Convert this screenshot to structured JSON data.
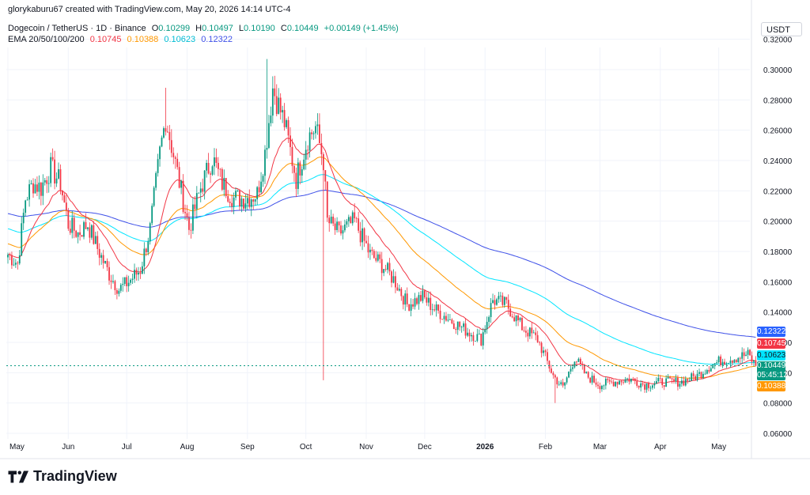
{
  "header": {
    "attribution": "glorykaburu67 created with TradingView.com, May 20, 2026 14:14 UTC-4"
  },
  "legend": {
    "symbol": "Dogecoin / TetherUS · 1D · Binance",
    "open_label": "O",
    "open": "0.10299",
    "high_label": "H",
    "high": "0.10497",
    "low_label": "L",
    "low": "0.10190",
    "close_label": "C",
    "close": "0.10449",
    "change": "+0.00149 (+1.45%)",
    "ema_label": "EMA 20/50/100/200",
    "ema20": "0.10745",
    "ema50": "0.10388",
    "ema100": "0.10623",
    "ema200": "0.12322"
  },
  "currency_button": "USDT",
  "price_tags": {
    "ema200": "0.12322",
    "ema20": "0.10745",
    "ema100": "0.10623",
    "last_price": "0.10449",
    "countdown": "05:45:12",
    "ema50": "0.10388"
  },
  "colors": {
    "up": "#089981",
    "down": "#f23645",
    "ema20": "#f23645",
    "ema50": "#ff9800",
    "ema100": "#00e5ff",
    "ema200": "#3f51e8",
    "ema200_tag": "#2962ff",
    "ema100_tag": "#00e5ff"
  },
  "logo": {
    "text": "TradingView",
    "icon": "tradingview-logo-icon"
  },
  "chart_data": {
    "type": "candlestick",
    "y_axis": {
      "ticks": [
        "0.06000",
        "0.08000",
        "0.10000",
        "0.12000",
        "0.14000",
        "0.16000",
        "0.18000",
        "0.20000",
        "0.22000",
        "0.24000",
        "0.26000",
        "0.28000",
        "0.30000",
        "0.32000"
      ],
      "range": [
        0.055,
        0.325
      ]
    },
    "x_axis": {
      "ticks": [
        "May",
        "Jun",
        "Jul",
        "Aug",
        "Sep",
        "Oct",
        "Nov",
        "Dec",
        "2026",
        "Feb",
        "Mar",
        "Apr",
        "May"
      ],
      "range_start": "2025-05-01",
      "range_end": "2026-05-20"
    },
    "last_close": 0.10449,
    "anchors": [
      [
        "2025-05-01",
        0.178
      ],
      [
        "2025-05-06",
        0.172
      ],
      [
        "2025-05-10",
        0.215
      ],
      [
        "2025-05-14",
        0.225
      ],
      [
        "2025-05-18",
        0.222
      ],
      [
        "2025-05-23",
        0.235
      ],
      [
        "2025-05-28",
        0.225
      ],
      [
        "2025-06-01",
        0.198
      ],
      [
        "2025-06-06",
        0.192
      ],
      [
        "2025-06-11",
        0.198
      ],
      [
        "2025-06-16",
        0.182
      ],
      [
        "2025-06-22",
        0.165
      ],
      [
        "2025-06-27",
        0.155
      ],
      [
        "2025-07-02",
        0.16
      ],
      [
        "2025-07-08",
        0.168
      ],
      [
        "2025-07-13",
        0.195
      ],
      [
        "2025-07-18",
        0.245
      ],
      [
        "2025-07-21",
        0.268
      ],
      [
        "2025-07-26",
        0.238
      ],
      [
        "2025-08-02",
        0.195
      ],
      [
        "2025-08-08",
        0.222
      ],
      [
        "2025-08-14",
        0.242
      ],
      [
        "2025-08-19",
        0.225
      ],
      [
        "2025-08-25",
        0.215
      ],
      [
        "2025-08-31",
        0.215
      ],
      [
        "2025-09-06",
        0.218
      ],
      [
        "2025-09-10",
        0.245
      ],
      [
        "2025-09-14",
        0.288
      ],
      [
        "2025-09-20",
        0.265
      ],
      [
        "2025-09-26",
        0.228
      ],
      [
        "2025-10-02",
        0.255
      ],
      [
        "2025-10-06",
        0.262
      ],
      [
        "2025-10-10",
        0.24
      ],
      [
        "2025-10-12",
        0.2
      ],
      [
        "2025-10-18",
        0.192
      ],
      [
        "2025-10-26",
        0.2
      ],
      [
        "2025-11-03",
        0.178
      ],
      [
        "2025-11-10",
        0.17
      ],
      [
        "2025-11-16",
        0.16
      ],
      [
        "2025-11-22",
        0.145
      ],
      [
        "2025-11-30",
        0.15
      ],
      [
        "2025-12-06",
        0.142
      ],
      [
        "2025-12-14",
        0.135
      ],
      [
        "2025-12-22",
        0.128
      ],
      [
        "2025-12-30",
        0.122
      ],
      [
        "2026-01-05",
        0.148
      ],
      [
        "2026-01-12",
        0.145
      ],
      [
        "2026-01-20",
        0.13
      ],
      [
        "2026-01-28",
        0.122
      ],
      [
        "2026-02-05",
        0.098
      ],
      [
        "2026-02-10",
        0.09
      ],
      [
        "2026-02-16",
        0.11
      ],
      [
        "2026-02-22",
        0.098
      ],
      [
        "2026-03-01",
        0.092
      ],
      [
        "2026-03-08",
        0.094
      ],
      [
        "2026-03-16",
        0.096
      ],
      [
        "2026-03-24",
        0.092
      ],
      [
        "2026-04-02",
        0.094
      ],
      [
        "2026-04-12",
        0.094
      ],
      [
        "2026-04-20",
        0.098
      ],
      [
        "2026-04-26",
        0.104
      ],
      [
        "2026-05-02",
        0.108
      ],
      [
        "2026-05-10",
        0.11
      ],
      [
        "2026-05-16",
        0.112
      ],
      [
        "2026-05-20",
        0.1045
      ]
    ],
    "spikes": [
      {
        "date": "2025-10-10",
        "low": 0.095
      },
      {
        "date": "2025-09-11",
        "high": 0.307
      },
      {
        "date": "2025-07-21",
        "high": 0.288
      },
      {
        "date": "2026-02-06",
        "low": 0.08
      }
    ],
    "ema_series": [
      {
        "name": "EMA 20",
        "period": 20,
        "value": 0.10745
      },
      {
        "name": "EMA 50",
        "period": 50,
        "value": 0.10388
      },
      {
        "name": "EMA 100",
        "period": 100,
        "value": 0.10623
      },
      {
        "name": "EMA 200",
        "period": 200,
        "value": 0.12322
      }
    ],
    "grid": true
  }
}
